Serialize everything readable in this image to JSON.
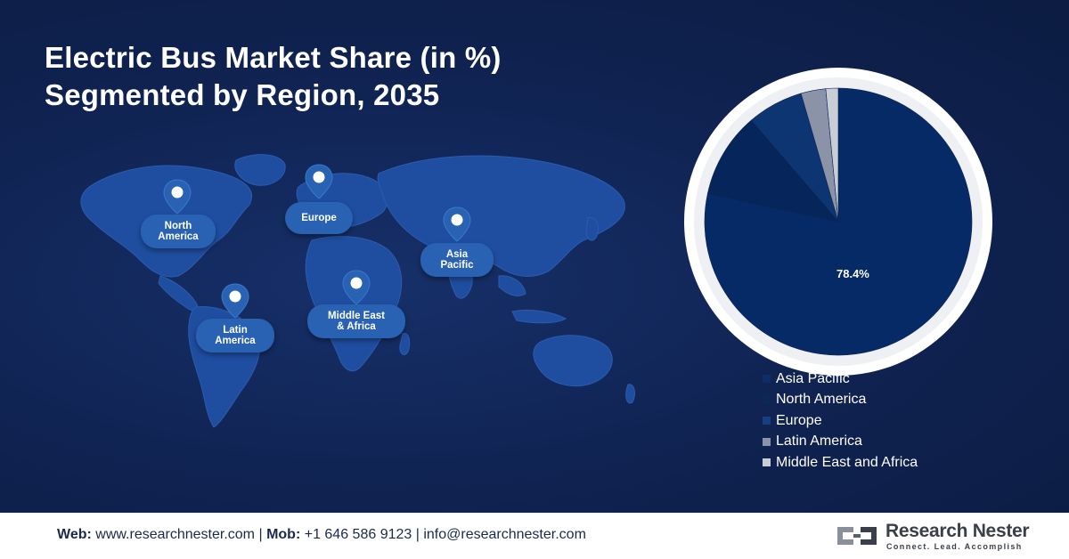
{
  "title": {
    "line1": "Electric Bus Market Share (in %)",
    "line2": "Segmented by Region, 2035"
  },
  "map": {
    "regions": [
      {
        "key": "north_america",
        "label": "North\nAmerica"
      },
      {
        "key": "europe",
        "label": "Europe"
      },
      {
        "key": "asia_pacific",
        "label": "Asia\nPacific"
      },
      {
        "key": "latin_america",
        "label": "Latin\nAmerica"
      },
      {
        "key": "mea",
        "label": "Middle East\n& Africa"
      }
    ],
    "icon": "location-pin-icon"
  },
  "chart_data": {
    "type": "pie",
    "title": "Electric Bus Market Share (in %) Segmented by Region, 2035",
    "series": [
      {
        "name": "Asia Pacific",
        "value": 78.4,
        "color": "#062a66",
        "data_label": "78.4%"
      },
      {
        "name": "North America",
        "value": 10.3,
        "color": "#06255a",
        "data_label": ""
      },
      {
        "name": "Europe",
        "value": 6.8,
        "color": "#0d3572",
        "data_label": ""
      },
      {
        "name": "Latin America",
        "value": 3.0,
        "color": "#8b93a8",
        "data_label": ""
      },
      {
        "name": "Middle East and Africa",
        "value": 1.5,
        "color": "#c9cdd6",
        "data_label": ""
      }
    ],
    "legend_position": "bottom-right",
    "start_angle_deg": 0,
    "direction": "clockwise"
  },
  "footer": {
    "web_label": "Web:",
    "web_value": "www.researchnester.com",
    "sep1": "|",
    "mob_label": "Mob:",
    "mob_value": "+1 646 586 9123",
    "sep2": "|",
    "email": "info@researchnester.com",
    "brand_name": "Research Nester",
    "brand_tagline": "Connect. Lead. Accomplish",
    "brand_icon": "research-nester-logo-icon"
  },
  "colors": {
    "background": "#0f2250",
    "region_label_bg": "#2a62b3",
    "map_land": "#1f4da0",
    "pie_ring": "#ffffff"
  }
}
